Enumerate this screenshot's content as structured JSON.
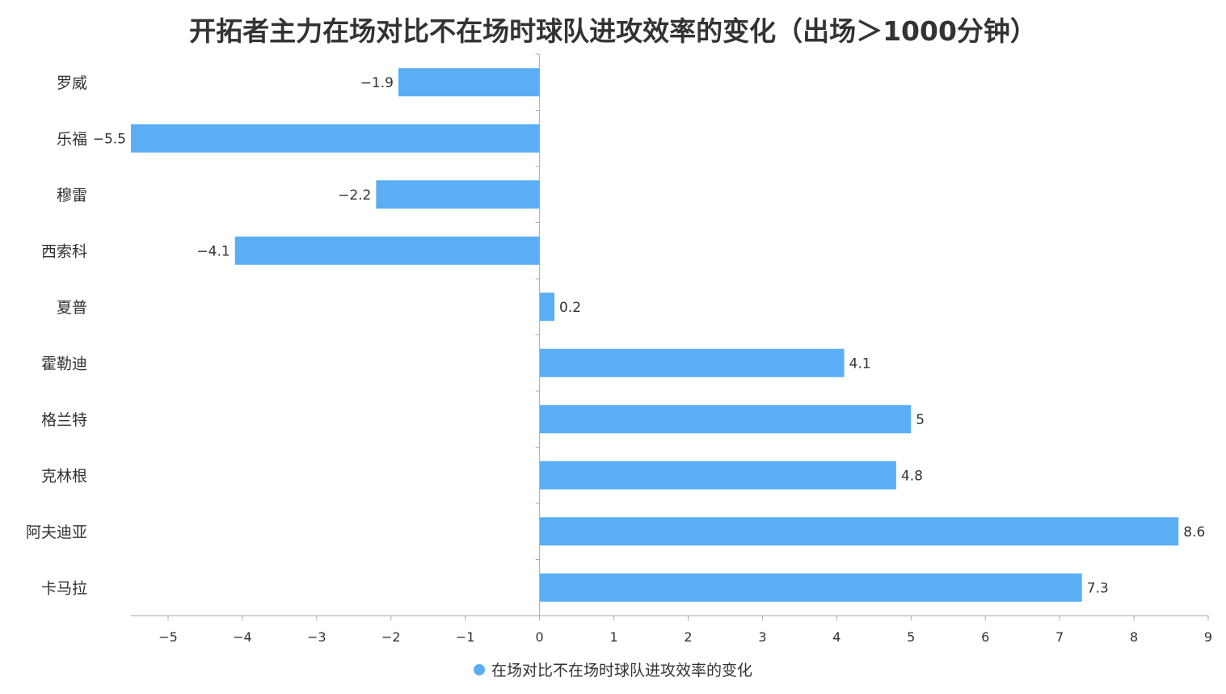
{
  "chart_data": {
    "type": "bar",
    "orientation": "horizontal",
    "title": "开拓者主力在场对比不在场时球队进攻效率的变化（出场＞1000分钟）",
    "categories": [
      "罗威",
      "乐福",
      "穆雷",
      "西索科",
      "夏普",
      "霍勒迪",
      "格兰特",
      "克林根",
      "阿夫迪亚",
      "卡马拉"
    ],
    "series": [
      {
        "name": "在场对比不在场时球队进攻效率的变化",
        "values": [
          -1.9,
          -5.5,
          -2.2,
          -4.1,
          0.2,
          4.1,
          5,
          4.8,
          8.6,
          7.3
        ],
        "labels": [
          "−1.9",
          "−5.5",
          "−2.2",
          "−4.1",
          "0.2",
          "4.1",
          "5",
          "4.8",
          "8.6",
          "7.3"
        ],
        "color": "#5aaef4"
      }
    ],
    "xlim": [
      -5.5,
      9
    ],
    "xticks": [
      -5,
      -4,
      -3,
      -2,
      -1,
      0,
      1,
      2,
      3,
      4,
      5,
      6,
      7,
      8,
      9
    ],
    "xtick_labels": [
      "−5",
      "−4",
      "−3",
      "−2",
      "−1",
      "0",
      "1",
      "2",
      "3",
      "4",
      "5",
      "6",
      "7",
      "8",
      "9"
    ],
    "xlabel": "",
    "ylabel": "",
    "grid": false,
    "legend_position": "bottom",
    "axis_color": "#aaaaaa"
  }
}
